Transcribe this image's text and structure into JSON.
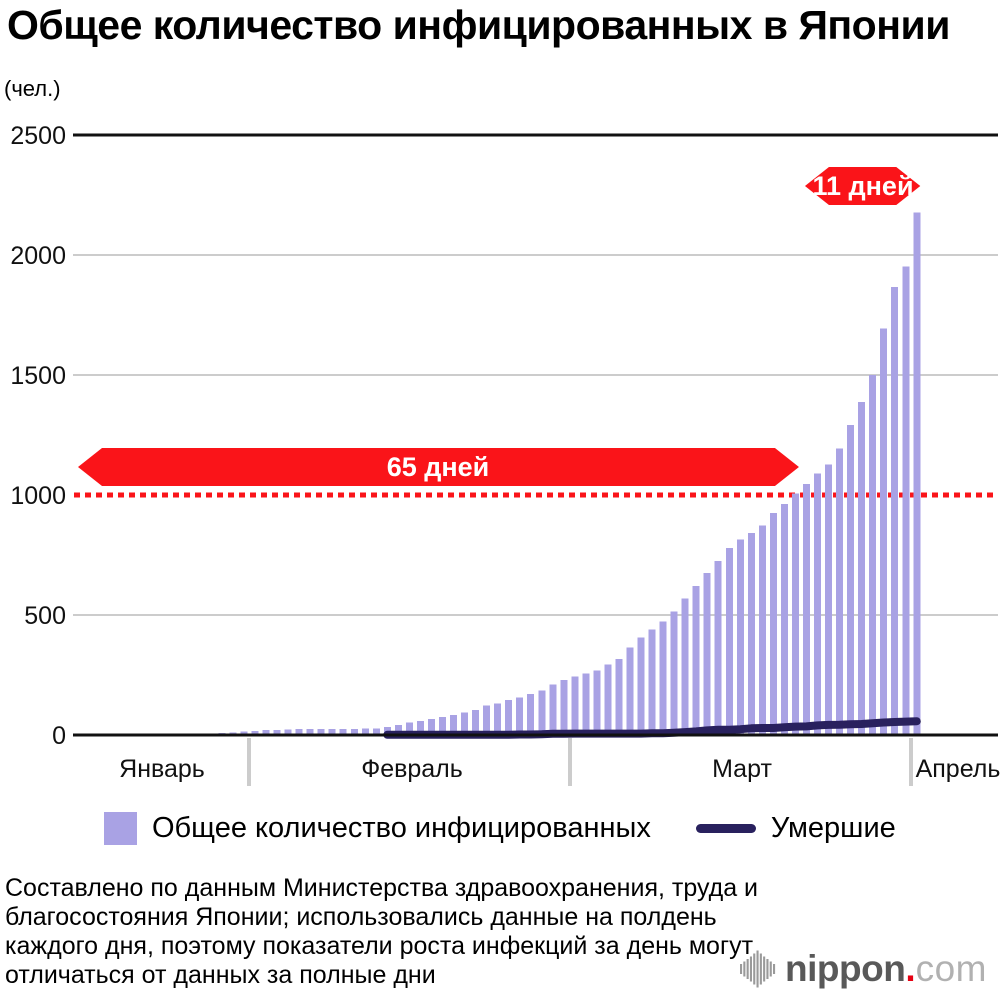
{
  "title": "Общее количество инфицированных в Японии",
  "unit_label": "(чел.)",
  "legend": {
    "infected_label": "Общее количество инфицированных",
    "deaths_label": "Умершие"
  },
  "footer_lines": [
    "Составлено по данным Министерства здравоохранения, труда и",
    "благосостояния Японии; использовались данные на полдень",
    "каждого дня, поэтому показатели роста инфекций за день могут",
    "отличаться от данных за полные дни"
  ],
  "logo": {
    "icon": "soundwave-icon",
    "name": "nippon",
    "dot": ".",
    "tld": "com"
  },
  "colors": {
    "bar": "#a9a2e4",
    "line": "#29215e",
    "red": "#fa1419",
    "grid": "#cccccc",
    "axis": "#111111"
  },
  "chart_data": {
    "type": "bar",
    "title": "Общее количество инфицированных в Японии",
    "ylabel": "(чел.)",
    "ylim": [
      0,
      2500
    ],
    "yticks": [
      0,
      500,
      1000,
      1500,
      2000,
      2500
    ],
    "x_months": [
      "Январь",
      "Февраль",
      "Март",
      "Апрель"
    ],
    "start_date": "01-16",
    "end_date": "04-01",
    "grid": true,
    "threshold_line": {
      "value": 1000,
      "color": "#fa1419",
      "style": "dotted"
    },
    "annotations": [
      {
        "label": "65 дней",
        "from": "01-16",
        "to": "03-21"
      },
      {
        "label": "11 дней",
        "from": "03-21",
        "to": "04-01"
      }
    ],
    "series": [
      {
        "name": "Общее количество инфицированных",
        "type": "bar",
        "color": "#a9a2e4",
        "values": [
          1,
          1,
          1,
          1,
          1,
          1,
          1,
          1,
          2,
          3,
          4,
          4,
          7,
          8,
          11,
          15,
          17,
          20,
          20,
          23,
          25,
          25,
          25,
          25,
          26,
          26,
          28,
          28,
          33,
          41,
          53,
          59,
          66,
          74,
          84,
          94,
          105,
          122,
          132,
          146,
          157,
          170,
          186,
          210,
          230,
          243,
          256,
          268,
          293,
          317,
          365,
          407,
          439,
          473,
          514,
          568,
          620,
          675,
          724,
          780,
          814,
          842,
          873,
          924,
          963,
          1007,
          1046,
          1089,
          1128,
          1193,
          1292,
          1387,
          1499,
          1693,
          1866,
          1953,
          2178
        ]
      },
      {
        "name": "Умершие",
        "type": "line",
        "color": "#29215e",
        "values": [
          null,
          null,
          null,
          null,
          null,
          null,
          null,
          null,
          null,
          null,
          null,
          null,
          null,
          null,
          null,
          null,
          null,
          null,
          null,
          null,
          null,
          null,
          null,
          null,
          null,
          null,
          null,
          null,
          1,
          1,
          1,
          1,
          1,
          1,
          1,
          1,
          1,
          1,
          1,
          1,
          2,
          2,
          3,
          5,
          5,
          6,
          6,
          6,
          6,
          6,
          6,
          6,
          7,
          7,
          9,
          12,
          15,
          19,
          22,
          22,
          24,
          28,
          29,
          29,
          32,
          35,
          36,
          40,
          42,
          43,
          45,
          46,
          49,
          52,
          54,
          56,
          57
        ]
      }
    ]
  }
}
